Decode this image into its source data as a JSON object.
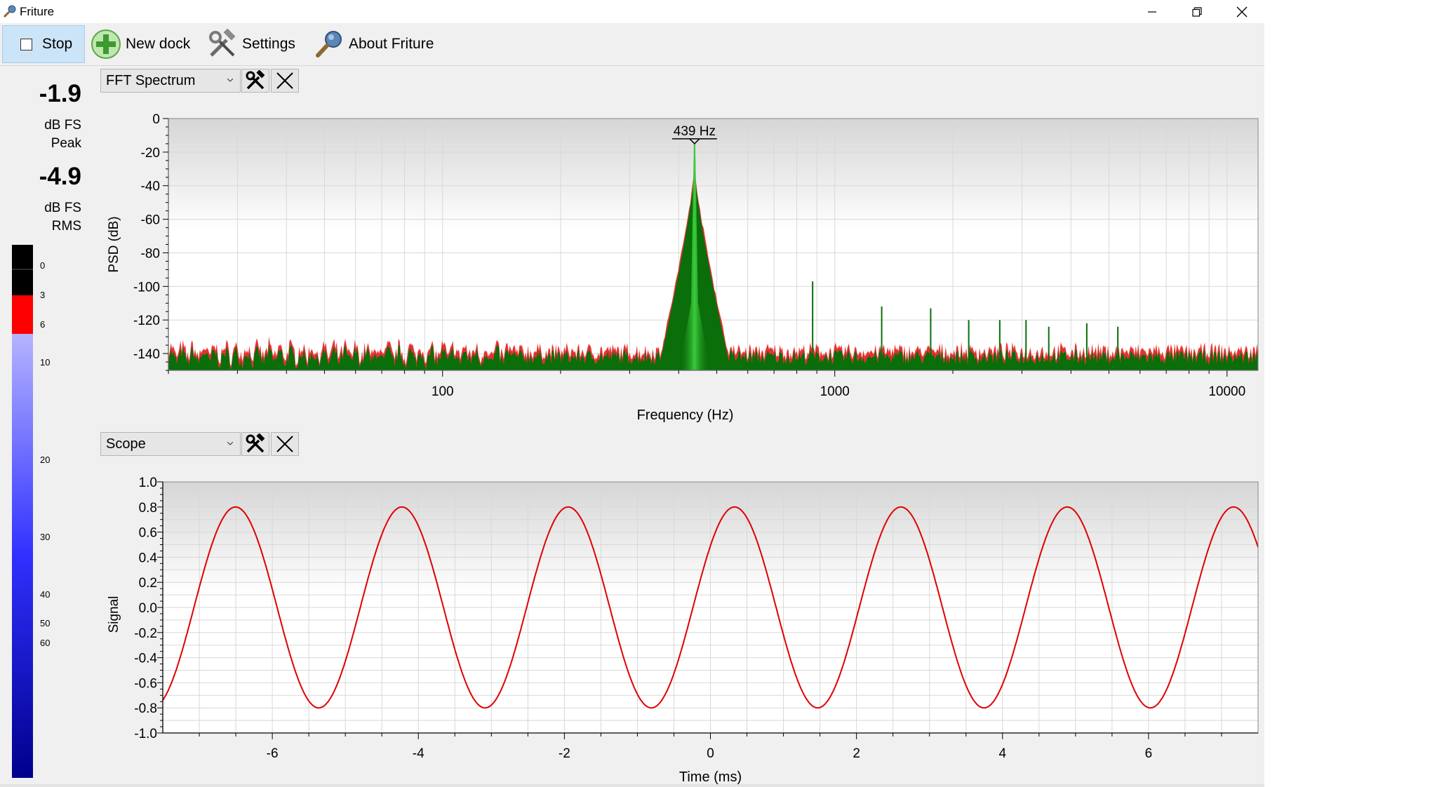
{
  "window": {
    "title": "Friture",
    "controls": [
      "minimize-icon",
      "restore-icon",
      "close-icon"
    ]
  },
  "toolbar": {
    "stop_label": "Stop",
    "new_dock_label": "New dock",
    "settings_label": "Settings",
    "about_label": "About Friture"
  },
  "levels": {
    "peak_value": "-1.9",
    "peak_unit": "dB FS",
    "peak_label": "Peak",
    "rms_value": "-4.9",
    "rms_unit": "dB FS",
    "rms_label": "RMS",
    "meter_ticks": [
      {
        "label": "0",
        "frac": 0.039
      },
      {
        "label": "3",
        "frac": 0.095
      },
      {
        "label": "6",
        "frac": 0.15
      },
      {
        "label": "10",
        "frac": 0.221
      },
      {
        "label": "20",
        "frac": 0.404
      },
      {
        "label": "30",
        "frac": 0.549
      },
      {
        "label": "40",
        "frac": 0.657
      },
      {
        "label": "50",
        "frac": 0.711
      },
      {
        "label": "60",
        "frac": 0.747
      }
    ],
    "colors": {
      "black": "#000000",
      "red": "#ff0000",
      "blue_top": "#b4b4ff",
      "blue_bottom": "#00008c"
    }
  },
  "docks": [
    {
      "selector": "FFT Spectrum",
      "settings_icon": "tools-icon",
      "close_icon": "close-icon"
    },
    {
      "selector": "Scope",
      "settings_icon": "tools-icon",
      "close_icon": "close-icon"
    }
  ],
  "chart_data": [
    {
      "type": "area",
      "xlabel": "Frequency (Hz)",
      "ylabel": "PSD (dB)",
      "xscale": "log",
      "xlim": [
        20,
        12000
      ],
      "ylim": [
        -150,
        0
      ],
      "xticks": [
        100,
        1000,
        10000
      ],
      "yticks": [
        0,
        -20,
        -40,
        -60,
        -80,
        -100,
        -120,
        -140
      ],
      "peak_annotation": {
        "label": "439 Hz",
        "frequency": 439,
        "value": -15
      },
      "harmonics": [
        {
          "frequency": 878,
          "value": -97
        },
        {
          "frequency": 1317,
          "value": -112
        },
        {
          "frequency": 1756,
          "value": -113
        },
        {
          "frequency": 2195,
          "value": -120
        },
        {
          "frequency": 2634,
          "value": -120
        },
        {
          "frequency": 3073,
          "value": -120
        },
        {
          "frequency": 3512,
          "value": -124
        },
        {
          "frequency": 4390,
          "value": -122
        },
        {
          "frequency": 5268,
          "value": -124
        }
      ],
      "noise_floor": -142,
      "grid": true,
      "colors": {
        "spectrum": "#0a6e0a",
        "peak": "#3ccc3c",
        "hold": "#e63030",
        "hold_light": "#f2a0a0"
      }
    },
    {
      "type": "line",
      "xlabel": "Time (ms)",
      "ylabel": "Signal",
      "xlim": [
        -7.5,
        7.5
      ],
      "ylim": [
        -1.0,
        1.0
      ],
      "xticks": [
        -6,
        -4,
        -2,
        0,
        2,
        4,
        6
      ],
      "yticks": [
        1.0,
        0.8,
        0.6,
        0.4,
        0.2,
        0.0,
        -0.2,
        -0.4,
        -0.6,
        -0.8,
        -1.0
      ],
      "series": [
        {
          "frequency_hz": 439,
          "amplitude": 0.8,
          "peak_time_ms": 0.33,
          "color": "#e00000"
        }
      ],
      "grid": true
    }
  ]
}
